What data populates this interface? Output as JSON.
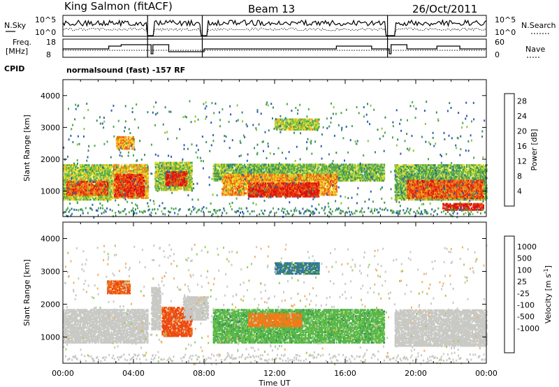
{
  "header": {
    "station": "King Salmon (fitACF)",
    "beam": "Beam 13",
    "date": "26/Oct/2011"
  },
  "param_panels": {
    "nsky_label": "N.Sky",
    "nsky_ticks": [
      "10^5",
      "10^0"
    ],
    "nsearch_label": "N.Search",
    "nsearch_ticks": [
      "10^5",
      "10^0"
    ],
    "freq_label_line1": "Freq.",
    "freq_label_line2": "[MHz]",
    "freq_ticks": [
      "18",
      "8"
    ],
    "nave_label": "Nave",
    "nave_ticks": [
      "60",
      "0"
    ],
    "cpid_label": "CPID",
    "cpid_text": "normalsound (fast) -157 RF"
  },
  "chart_data": [
    {
      "type": "heatmap",
      "title": "",
      "xlabel": "Time UT",
      "ylabel": "Slant Range [km]",
      "x_ticks": [
        "00:00",
        "04:00",
        "08:00",
        "12:00",
        "16:00",
        "20:00",
        "00:00"
      ],
      "xlim_hours": [
        0,
        24
      ],
      "y_ticks": [
        "1000",
        "2000",
        "3000",
        "4000"
      ],
      "ylim": [
        200,
        4500
      ],
      "colorbar": {
        "label": "Power [dB]",
        "ticks": [
          "4",
          "8",
          "12",
          "16",
          "20",
          "24",
          "28"
        ],
        "range": [
          0,
          30
        ],
        "colors": [
          "#1f1fd6",
          "#2f5fb0",
          "#3b8a62",
          "#4aa84a",
          "#8cc63c",
          "#e8e02a",
          "#f4a020",
          "#f26a16",
          "#e83a10",
          "#d81010"
        ]
      },
      "regions": [
        {
          "t0": 0.0,
          "t1": 2.7,
          "r0": 700,
          "r1": 1800,
          "value": 14
        },
        {
          "t0": 0.2,
          "t1": 2.5,
          "r0": 850,
          "r1": 1300,
          "value": 24
        },
        {
          "t0": 2.8,
          "t1": 4.8,
          "r0": 750,
          "r1": 1800,
          "value": 18
        },
        {
          "t0": 2.9,
          "t1": 4.6,
          "r0": 800,
          "r1": 1500,
          "value": 26
        },
        {
          "t0": 3.0,
          "t1": 4.0,
          "r0": 2300,
          "r1": 2700,
          "value": 20
        },
        {
          "t0": 5.2,
          "t1": 7.3,
          "r0": 1000,
          "r1": 1900,
          "value": 14
        },
        {
          "t0": 5.8,
          "t1": 7.0,
          "r0": 1150,
          "r1": 1600,
          "value": 27
        },
        {
          "t0": 8.5,
          "t1": 18.2,
          "r0": 1300,
          "r1": 1800,
          "value": 12
        },
        {
          "t0": 9.0,
          "t1": 15.5,
          "r0": 850,
          "r1": 1500,
          "value": 20
        },
        {
          "t0": 10.5,
          "t1": 14.5,
          "r0": 800,
          "r1": 1250,
          "value": 27
        },
        {
          "t0": 12.0,
          "t1": 14.5,
          "r0": 2900,
          "r1": 3250,
          "value": 14
        },
        {
          "t0": 18.8,
          "t1": 24.0,
          "r0": 700,
          "r1": 1800,
          "value": 12
        },
        {
          "t0": 19.5,
          "t1": 23.8,
          "r0": 750,
          "r1": 1300,
          "value": 24
        },
        {
          "t0": 21.5,
          "t1": 23.8,
          "r0": 380,
          "r1": 600,
          "value": 28
        }
      ]
    },
    {
      "type": "heatmap",
      "title": "",
      "xlabel": "Time UT",
      "ylabel": "Slant Range [km]",
      "x_ticks": [
        "00:00",
        "04:00",
        "08:00",
        "12:00",
        "16:00",
        "20:00",
        "00:00"
      ],
      "xlim_hours": [
        0,
        24
      ],
      "y_ticks": [
        "1000",
        "2000",
        "3000",
        "4000"
      ],
      "ylim": [
        200,
        4500
      ],
      "colorbar": {
        "label": "Velocity [m s",
        "label_sup": "-1",
        "label_end": "]",
        "ticks": [
          "1000",
          "500",
          "100",
          "25",
          "-25",
          "-100",
          "-500",
          "-1000"
        ],
        "colors": [
          "#2233c8",
          "#2e6fb4",
          "#3a8a58",
          "#56b848",
          "#9ad060",
          "#c8c8c4",
          "#f5b060",
          "#f27a18",
          "#ec4612",
          "#e01010"
        ]
      },
      "regions": [
        {
          "t0": 0.0,
          "t1": 4.8,
          "r0": 800,
          "r1": 1800,
          "value": 0
        },
        {
          "t0": 5.0,
          "t1": 5.5,
          "r0": 1200,
          "r1": 2500,
          "value": 0
        },
        {
          "t0": 5.6,
          "t1": 7.3,
          "r0": 1000,
          "r1": 1900,
          "value": -400
        },
        {
          "t0": 6.8,
          "t1": 8.2,
          "r0": 1500,
          "r1": 2200,
          "value": 0
        },
        {
          "t0": 8.5,
          "t1": 18.2,
          "r0": 800,
          "r1": 1800,
          "value": 60
        },
        {
          "t0": 10.5,
          "t1": 13.5,
          "r0": 1300,
          "r1": 1700,
          "value": -200
        },
        {
          "t0": 12.0,
          "t1": 14.5,
          "r0": 2900,
          "r1": 3250,
          "value": 300
        },
        {
          "t0": 18.8,
          "t1": 24.0,
          "r0": 700,
          "r1": 1800,
          "value": 0
        },
        {
          "t0": 2.5,
          "t1": 3.8,
          "r0": 2300,
          "r1": 2700,
          "value": -300
        }
      ]
    }
  ]
}
